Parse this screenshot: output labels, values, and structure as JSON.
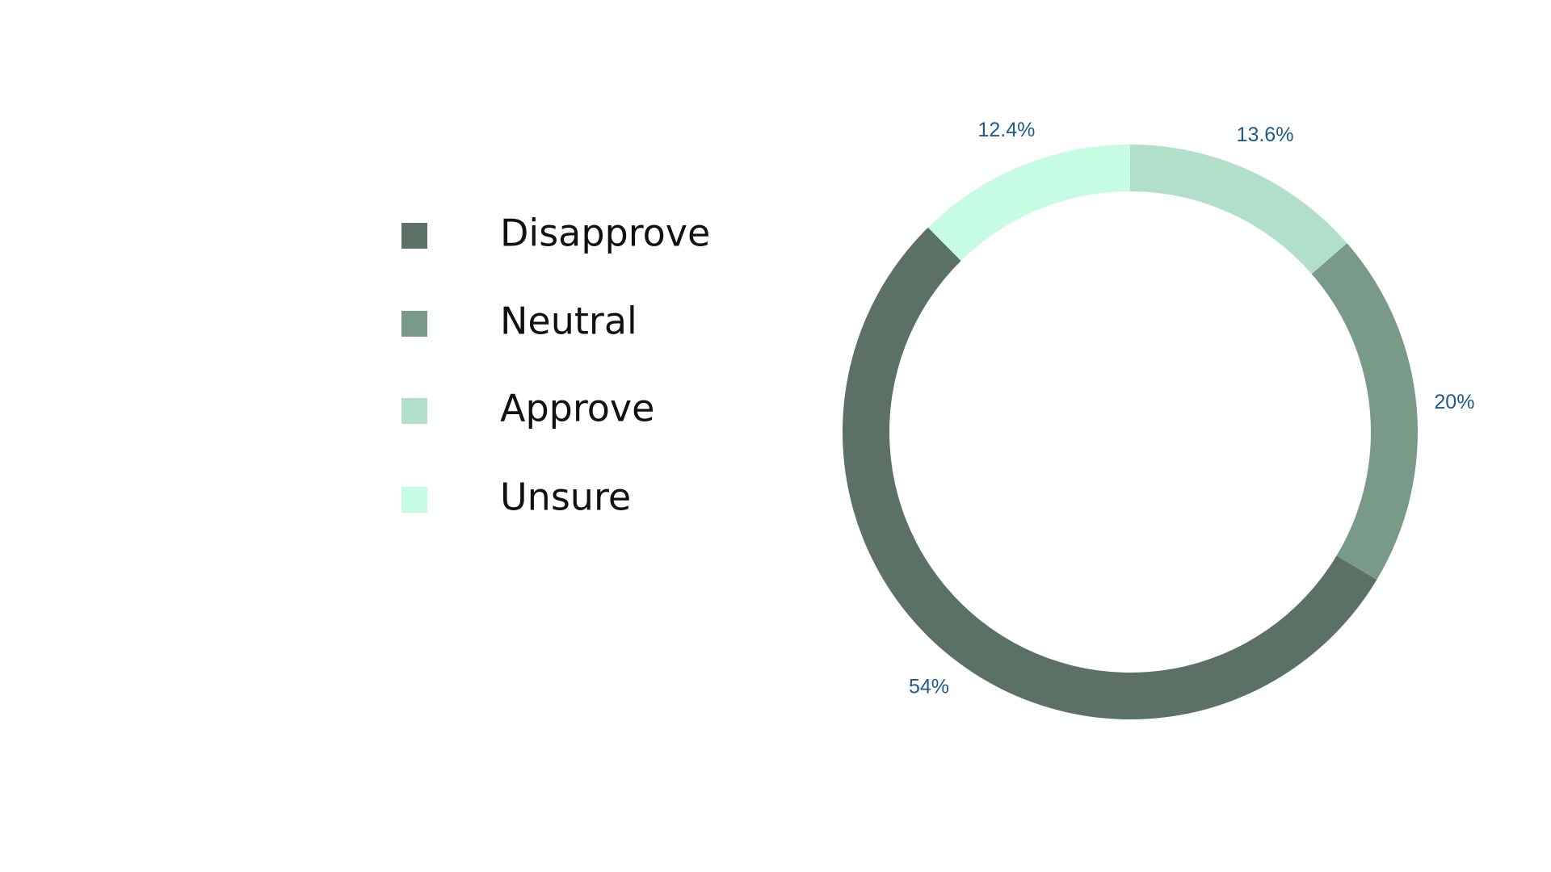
{
  "chart_data": {
    "type": "donut",
    "categories": [
      "Disapprove",
      "Neutral",
      "Approve",
      "Unsure"
    ],
    "values": [
      54,
      20,
      13.6,
      12.4
    ],
    "value_labels": [
      "54%",
      "20%",
      "13.6%",
      "12.4%"
    ],
    "colors": [
      "#5b7165",
      "#7a9a89",
      "#b1dfca",
      "#c6fce3"
    ],
    "legend": "left"
  }
}
